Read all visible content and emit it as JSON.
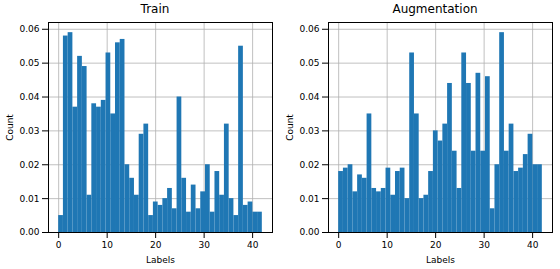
{
  "chart_data": [
    {
      "type": "histogram",
      "title": "Train",
      "x_label": "Labels",
      "y_label": "Count",
      "color": "#1f77b4",
      "grid": true,
      "bins": [
        0,
        0.977,
        1.953,
        2.93,
        3.907,
        4.884,
        5.86,
        6.837,
        7.814,
        8.791,
        9.767,
        10.744,
        11.721,
        12.698,
        13.674,
        14.651,
        15.628,
        16.605,
        17.581,
        18.558,
        19.535,
        20.512,
        21.488,
        22.465,
        23.442,
        24.419,
        25.395,
        26.372,
        27.349,
        28.326,
        29.302,
        30.279,
        31.256,
        32.233,
        33.209,
        34.186,
        35.163,
        36.14,
        37.116,
        38.093,
        39.07,
        40.047,
        41.023,
        42
      ],
      "counts": [
        0.005,
        0.058,
        0.059,
        0.037,
        0.052,
        0.049,
        0.011,
        0.038,
        0.037,
        0.039,
        0.053,
        0.035,
        0.056,
        0.057,
        0.02,
        0.016,
        0.011,
        0.029,
        0.032,
        0.005,
        0.009,
        0.008,
        0.01,
        0.013,
        0.007,
        0.04,
        0.016,
        0.006,
        0.014,
        0.007,
        0.012,
        0.02,
        0.006,
        0.018,
        0.011,
        0.032,
        0.01,
        0.005,
        0.055,
        0.008,
        0.009,
        0.006,
        0.006
      ],
      "xlim": [
        -2.1,
        44.1
      ],
      "xticks": [
        0,
        10,
        20,
        30,
        40
      ],
      "ylim": [
        0,
        0.062
      ],
      "yticks": [
        {
          "value": 0,
          "label": "0.00"
        },
        {
          "value": 0.01,
          "label": "0.01"
        },
        {
          "value": 0.02,
          "label": "0.02"
        },
        {
          "value": 0.03,
          "label": "0.03"
        },
        {
          "value": 0.04,
          "label": "0.04"
        },
        {
          "value": 0.05,
          "label": "0.05"
        },
        {
          "value": 0.06,
          "label": "0.06"
        }
      ]
    },
    {
      "type": "histogram",
      "title": "Augmentation",
      "x_label": "Labels",
      "y_label": "Count",
      "color": "#1f77b4",
      "grid": true,
      "bins": [
        0,
        0.977,
        1.953,
        2.93,
        3.907,
        4.884,
        5.86,
        6.837,
        7.814,
        8.791,
        9.767,
        10.744,
        11.721,
        12.698,
        13.674,
        14.651,
        15.628,
        16.605,
        17.581,
        18.558,
        19.535,
        20.512,
        21.488,
        22.465,
        23.442,
        24.419,
        25.395,
        26.372,
        27.349,
        28.326,
        29.302,
        30.279,
        31.256,
        32.233,
        33.209,
        34.186,
        35.163,
        36.14,
        37.116,
        38.093,
        39.07,
        40.047,
        41.023,
        42
      ],
      "counts": [
        0.018,
        0.019,
        0.02,
        0.012,
        0.017,
        0.016,
        0.035,
        0.013,
        0.012,
        0.013,
        0.019,
        0.011,
        0.018,
        0.019,
        0.01,
        0.053,
        0.035,
        0.01,
        0.011,
        0.018,
        0.03,
        0.027,
        0.032,
        0.044,
        0.024,
        0.013,
        0.053,
        0.044,
        0.024,
        0.047,
        0.024,
        0.046,
        0.007,
        0.02,
        0.059,
        0.024,
        0.032,
        0.018,
        0.019,
        0.023,
        0.029,
        0.02,
        0.02
      ],
      "xlim": [
        -2.1,
        44.1
      ],
      "xticks": [
        0,
        10,
        20,
        30,
        40
      ],
      "ylim": [
        0,
        0.062
      ],
      "yticks": [
        {
          "value": 0,
          "label": "0.00"
        },
        {
          "value": 0.01,
          "label": "0.01"
        },
        {
          "value": 0.02,
          "label": "0.02"
        },
        {
          "value": 0.03,
          "label": "0.03"
        },
        {
          "value": 0.04,
          "label": "0.04"
        },
        {
          "value": 0.05,
          "label": "0.05"
        },
        {
          "value": 0.06,
          "label": "0.06"
        }
      ]
    }
  ]
}
